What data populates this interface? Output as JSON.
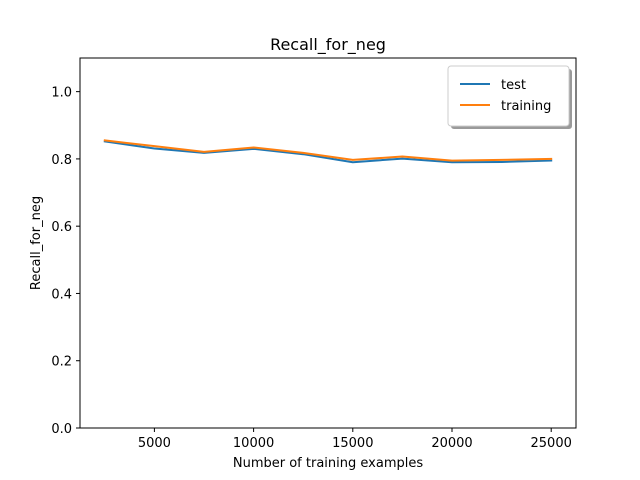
{
  "chart_data": {
    "type": "line",
    "title": "Recall_for_neg",
    "xlabel": "Number of training examples",
    "ylabel": "Recall_for_neg",
    "xlim": [
      1250,
      26250
    ],
    "ylim": [
      0.0,
      1.1
    ],
    "x_ticks": [
      5000,
      10000,
      15000,
      20000,
      25000
    ],
    "y_ticks": [
      0.0,
      0.2,
      0.4,
      0.6,
      0.8,
      1.0
    ],
    "x_tick_labels": [
      "5000",
      "10000",
      "15000",
      "20000",
      "25000"
    ],
    "y_tick_labels": [
      "0.0",
      "0.2",
      "0.4",
      "0.6",
      "0.8",
      "1.0"
    ],
    "grid": false,
    "legend_position": "top-right",
    "x": [
      2500,
      5000,
      7500,
      10000,
      12500,
      15000,
      17500,
      20000,
      22500,
      25000
    ],
    "series": [
      {
        "name": "test",
        "color": "#1f77b4",
        "values": [
          0.852,
          0.831,
          0.818,
          0.83,
          0.814,
          0.79,
          0.801,
          0.79,
          0.791,
          0.795
        ]
      },
      {
        "name": "training",
        "color": "#ff7f0e",
        "values": [
          0.855,
          0.838,
          0.821,
          0.834,
          0.818,
          0.797,
          0.807,
          0.795,
          0.797,
          0.8
        ]
      }
    ]
  }
}
